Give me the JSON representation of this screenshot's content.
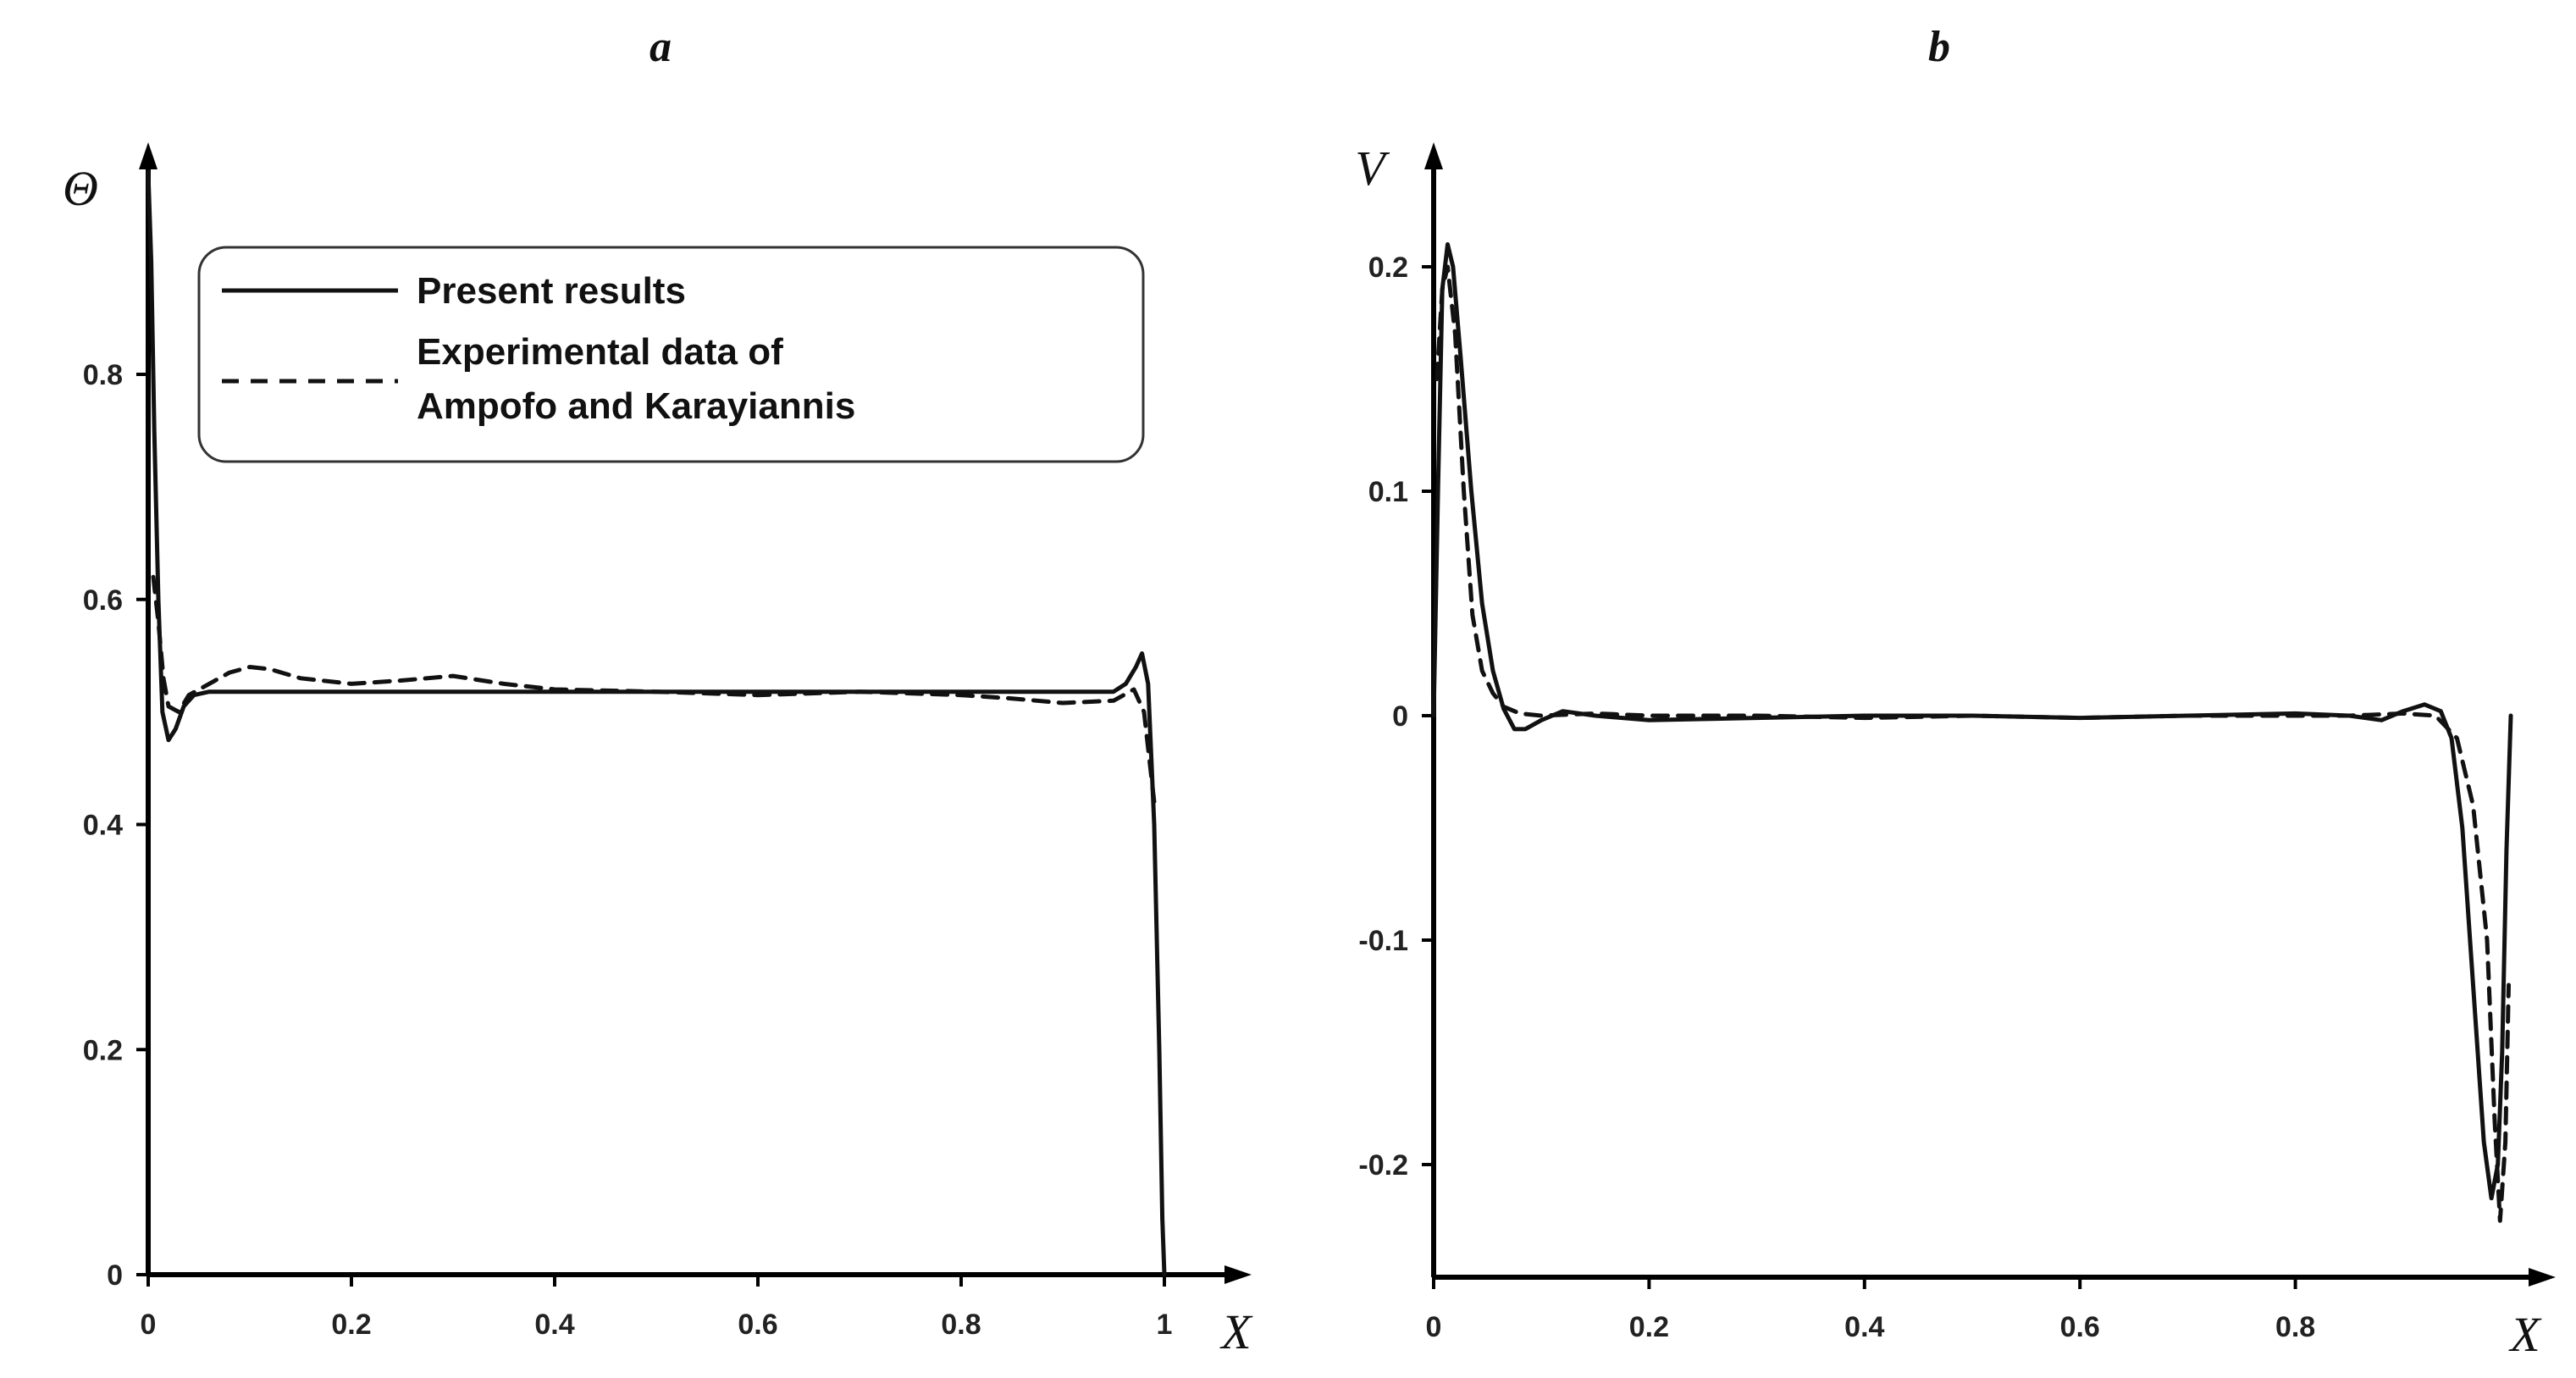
{
  "chart_data": [
    {
      "type": "line",
      "panel_label": "a",
      "xlabel": "X",
      "ylabel": "Θ",
      "xlim": [
        0,
        1
      ],
      "ylim": [
        0,
        1
      ],
      "xticks": [
        "0",
        "0.2",
        "0.4",
        "0.6",
        "0.8",
        "1"
      ],
      "xtick_values": [
        0,
        0.2,
        0.4,
        0.6,
        0.8,
        1
      ],
      "yticks": [
        "0",
        "0.2",
        "0.4",
        "0.6",
        "0.8"
      ],
      "ytick_values": [
        0,
        0.2,
        0.4,
        0.6,
        0.8
      ],
      "legend": {
        "position": "top-left",
        "entries": [
          {
            "style": "solid",
            "lines": [
              "Present results"
            ]
          },
          {
            "style": "dashed",
            "lines": [
              "Experimental data of",
              "Ampofo and Karayiannis"
            ]
          }
        ]
      },
      "series": [
        {
          "name": "Present results",
          "style": "solid",
          "color": "#111111",
          "x": [
            0,
            0.003,
            0.006,
            0.01,
            0.014,
            0.02,
            0.027,
            0.035,
            0.045,
            0.06,
            0.08,
            0.1,
            0.2,
            0.3,
            0.4,
            0.5,
            0.6,
            0.7,
            0.8,
            0.9,
            0.95,
            0.962,
            0.972,
            0.978,
            0.984,
            0.99,
            0.995,
            0.998,
            1.0
          ],
          "y": [
            0.98,
            0.9,
            0.75,
            0.6,
            0.5,
            0.475,
            0.485,
            0.505,
            0.515,
            0.518,
            0.518,
            0.518,
            0.518,
            0.518,
            0.518,
            0.518,
            0.518,
            0.518,
            0.518,
            0.518,
            0.518,
            0.525,
            0.54,
            0.552,
            0.525,
            0.4,
            0.2,
            0.05,
            0
          ]
        },
        {
          "name": "Experimental data of Ampofo and Karayiannis",
          "style": "dashed",
          "color": "#111111",
          "x": [
            0.005,
            0.01,
            0.015,
            0.02,
            0.03,
            0.04,
            0.06,
            0.08,
            0.1,
            0.12,
            0.15,
            0.2,
            0.25,
            0.3,
            0.35,
            0.4,
            0.5,
            0.6,
            0.7,
            0.8,
            0.85,
            0.9,
            0.95,
            0.97,
            0.98,
            0.985,
            0.99
          ],
          "y": [
            0.62,
            0.58,
            0.53,
            0.505,
            0.5,
            0.515,
            0.525,
            0.535,
            0.54,
            0.538,
            0.53,
            0.525,
            0.528,
            0.532,
            0.525,
            0.52,
            0.518,
            0.515,
            0.518,
            0.515,
            0.512,
            0.508,
            0.51,
            0.52,
            0.5,
            0.46,
            0.42
          ]
        }
      ]
    },
    {
      "type": "line",
      "panel_label": "b",
      "xlabel": "X",
      "ylabel": "V",
      "xlim": [
        0,
        1
      ],
      "ylim": [
        -0.25,
        0.25
      ],
      "xticks": [
        "0",
        "0.2",
        "0.4",
        "0.6",
        "0.8"
      ],
      "xtick_values": [
        0,
        0.2,
        0.4,
        0.6,
        0.8
      ],
      "yticks": [
        "0.2",
        "0.1",
        "0",
        "-0.1",
        "-0.2"
      ],
      "ytick_values": [
        0.2,
        0.1,
        0,
        -0.1,
        -0.2
      ],
      "series": [
        {
          "name": "Present results",
          "style": "solid",
          "color": "#111111",
          "x": [
            0,
            0.004,
            0.008,
            0.013,
            0.018,
            0.025,
            0.035,
            0.045,
            0.055,
            0.065,
            0.075,
            0.085,
            0.1,
            0.12,
            0.15,
            0.2,
            0.3,
            0.4,
            0.5,
            0.6,
            0.7,
            0.8,
            0.85,
            0.88,
            0.9,
            0.92,
            0.935,
            0.945,
            0.955,
            0.965,
            0.975,
            0.982,
            0.988,
            0.992,
            0.996,
            1.0
          ],
          "y": [
            0,
            0.1,
            0.19,
            0.21,
            0.2,
            0.16,
            0.1,
            0.05,
            0.02,
            0.003,
            -0.006,
            -0.006,
            -0.002,
            0.002,
            0.0,
            -0.002,
            -0.001,
            0,
            0,
            -0.001,
            0,
            0.001,
            0.0,
            -0.002,
            0.002,
            0.005,
            0.002,
            -0.01,
            -0.05,
            -0.12,
            -0.19,
            -0.215,
            -0.2,
            -0.15,
            -0.06,
            0
          ]
        },
        {
          "name": "Experimental data of Ampofo and Karayiannis",
          "style": "dashed",
          "color": "#111111",
          "x": [
            0.003,
            0.008,
            0.013,
            0.02,
            0.028,
            0.036,
            0.045,
            0.055,
            0.065,
            0.08,
            0.1,
            0.15,
            0.2,
            0.3,
            0.4,
            0.5,
            0.6,
            0.7,
            0.8,
            0.85,
            0.9,
            0.93,
            0.95,
            0.965,
            0.978,
            0.985,
            0.99,
            0.995,
            0.998
          ],
          "y": [
            0.15,
            0.19,
            0.2,
            0.17,
            0.1,
            0.045,
            0.02,
            0.01,
            0.004,
            0.001,
            0,
            0.001,
            0.0,
            0.0,
            -0.001,
            0,
            -0.001,
            0,
            0,
            0,
            0.001,
            0,
            -0.01,
            -0.04,
            -0.1,
            -0.18,
            -0.225,
            -0.19,
            -0.12
          ]
        }
      ]
    }
  ]
}
